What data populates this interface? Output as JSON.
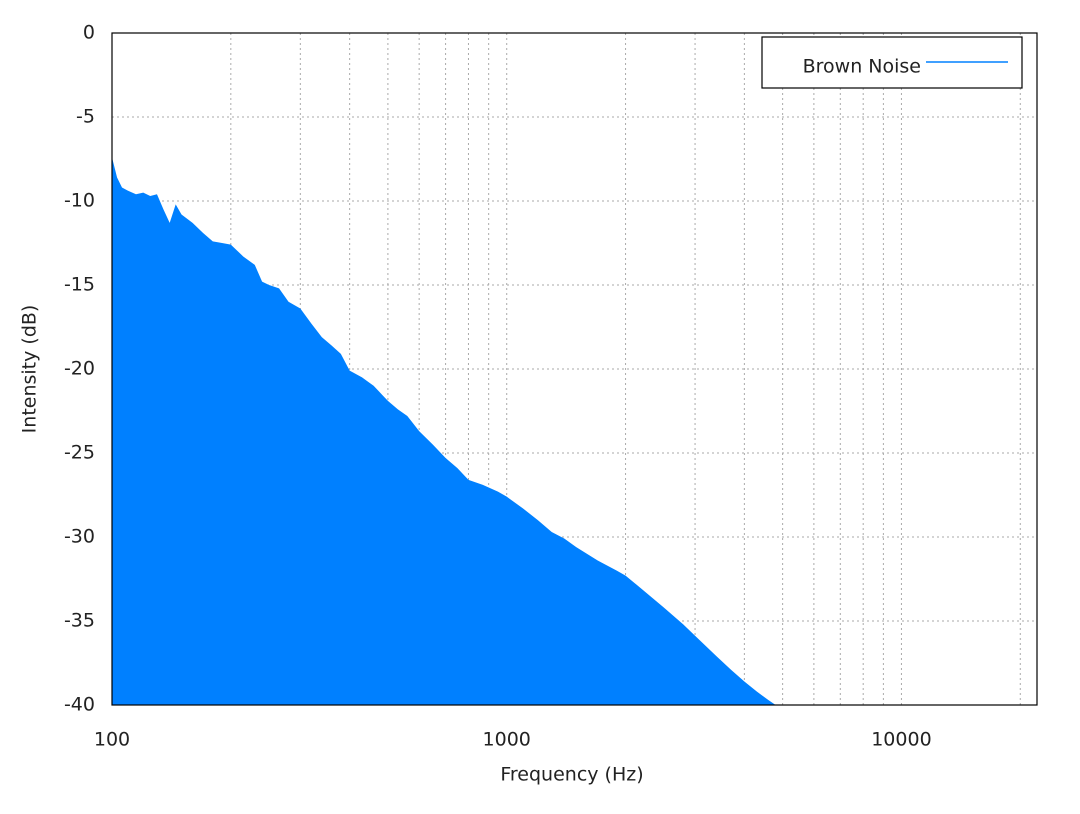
{
  "chart_data": {
    "type": "area",
    "xlabel": "Frequency (Hz)",
    "ylabel": "Intensity (dB)",
    "xscale": "log",
    "grid": true,
    "xlim": [
      100,
      22050
    ],
    "ylim": [
      -40,
      0
    ],
    "xticks": [
      100,
      1000,
      10000
    ],
    "xminorticks": [
      200,
      300,
      400,
      500,
      600,
      700,
      800,
      900,
      2000,
      3000,
      4000,
      5000,
      6000,
      7000,
      8000,
      9000,
      20000
    ],
    "yticks": [
      0,
      -5,
      -10,
      -15,
      -20,
      -25,
      -30,
      -35,
      -40
    ],
    "legend": "upper right",
    "x": [
      100,
      103,
      106,
      110,
      115,
      120,
      125,
      130,
      135,
      140,
      145,
      150,
      160,
      170,
      180,
      190,
      200,
      215,
      230,
      240,
      250,
      265,
      280,
      300,
      320,
      340,
      360,
      380,
      400,
      430,
      460,
      500,
      530,
      560,
      600,
      650,
      700,
      750,
      800,
      870,
      950,
      1000,
      1100,
      1200,
      1300,
      1400,
      1500,
      1700,
      1900,
      2000,
      2200,
      2500,
      2800,
      3100,
      3400,
      3700,
      4000,
      4300,
      4600,
      4800
    ],
    "series": [
      {
        "name": "Brown Noise",
        "color": "#0080ff",
        "values": [
          -7.4,
          -8.6,
          -9.2,
          -9.4,
          -9.6,
          -9.5,
          -9.7,
          -9.6,
          -10.5,
          -11.3,
          -10.2,
          -10.8,
          -11.3,
          -11.9,
          -12.4,
          -12.5,
          -12.6,
          -13.3,
          -13.8,
          -14.8,
          -15.0,
          -15.2,
          -16.0,
          -16.4,
          -17.3,
          -18.1,
          -18.6,
          -19.1,
          -20.1,
          -20.5,
          -21.0,
          -21.9,
          -22.4,
          -22.8,
          -23.7,
          -24.5,
          -25.3,
          -25.9,
          -26.6,
          -26.9,
          -27.3,
          -27.6,
          -28.3,
          -29.0,
          -29.7,
          -30.1,
          -30.6,
          -31.4,
          -32.0,
          -32.3,
          -33.1,
          -34.2,
          -35.2,
          -36.2,
          -37.1,
          -37.9,
          -38.6,
          -39.2,
          -39.7,
          -40
        ]
      }
    ]
  }
}
